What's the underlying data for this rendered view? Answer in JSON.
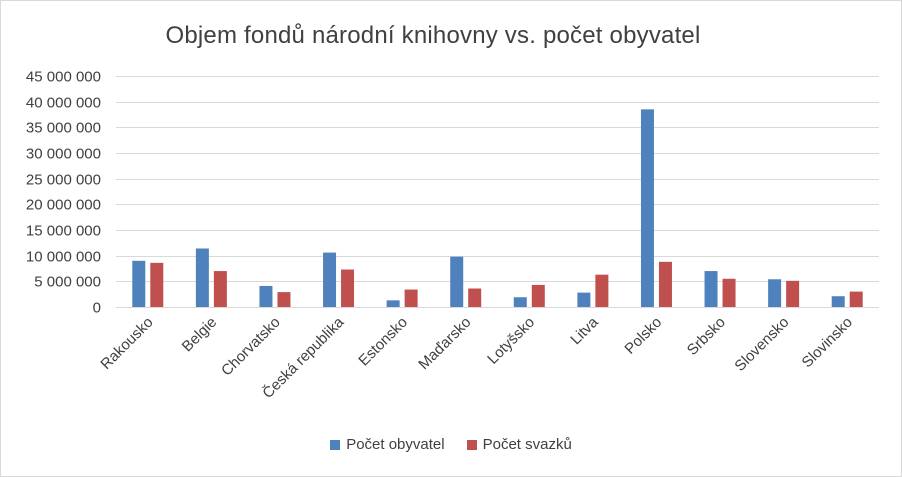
{
  "chart_data": {
    "type": "bar",
    "title": "Objem fondů národní knihovny vs. počet obyvatel",
    "xlabel": "",
    "ylabel": "",
    "ylim": [
      0,
      45000000
    ],
    "yticks": [
      {
        "value": 0,
        "label": "0"
      },
      {
        "value": 5000000,
        "label": "5 000 000"
      },
      {
        "value": 10000000,
        "label": "10 000 000"
      },
      {
        "value": 15000000,
        "label": "15 000 000"
      },
      {
        "value": 20000000,
        "label": "20 000 000"
      },
      {
        "value": 25000000,
        "label": "25 000 000"
      },
      {
        "value": 30000000,
        "label": "30 000 000"
      },
      {
        "value": 35000000,
        "label": "35 000 000"
      },
      {
        "value": 40000000,
        "label": "40 000 000"
      },
      {
        "value": 45000000,
        "label": "45 000 000"
      }
    ],
    "grid": true,
    "legend_position": "bottom",
    "categories": [
      "Rakousko",
      "Belgie",
      "Chorvatsko",
      "Česká republika",
      "Estonsko",
      "Maďarsko",
      "Lotyšsko",
      "Litva",
      "Polsko",
      "Srbsko",
      "Slovensko",
      "Slovinsko"
    ],
    "series": [
      {
        "name": "Počet obyvatel",
        "color": "#4f81bd",
        "values": [
          9000000,
          11400000,
          4100000,
          10600000,
          1300000,
          9800000,
          1900000,
          2800000,
          38500000,
          7000000,
          5400000,
          2100000
        ]
      },
      {
        "name": "Počet svazků",
        "color": "#c0504d",
        "values": [
          8600000,
          7000000,
          2900000,
          7300000,
          3400000,
          3600000,
          4300000,
          6300000,
          8800000,
          5500000,
          5100000,
          3000000
        ]
      }
    ]
  }
}
